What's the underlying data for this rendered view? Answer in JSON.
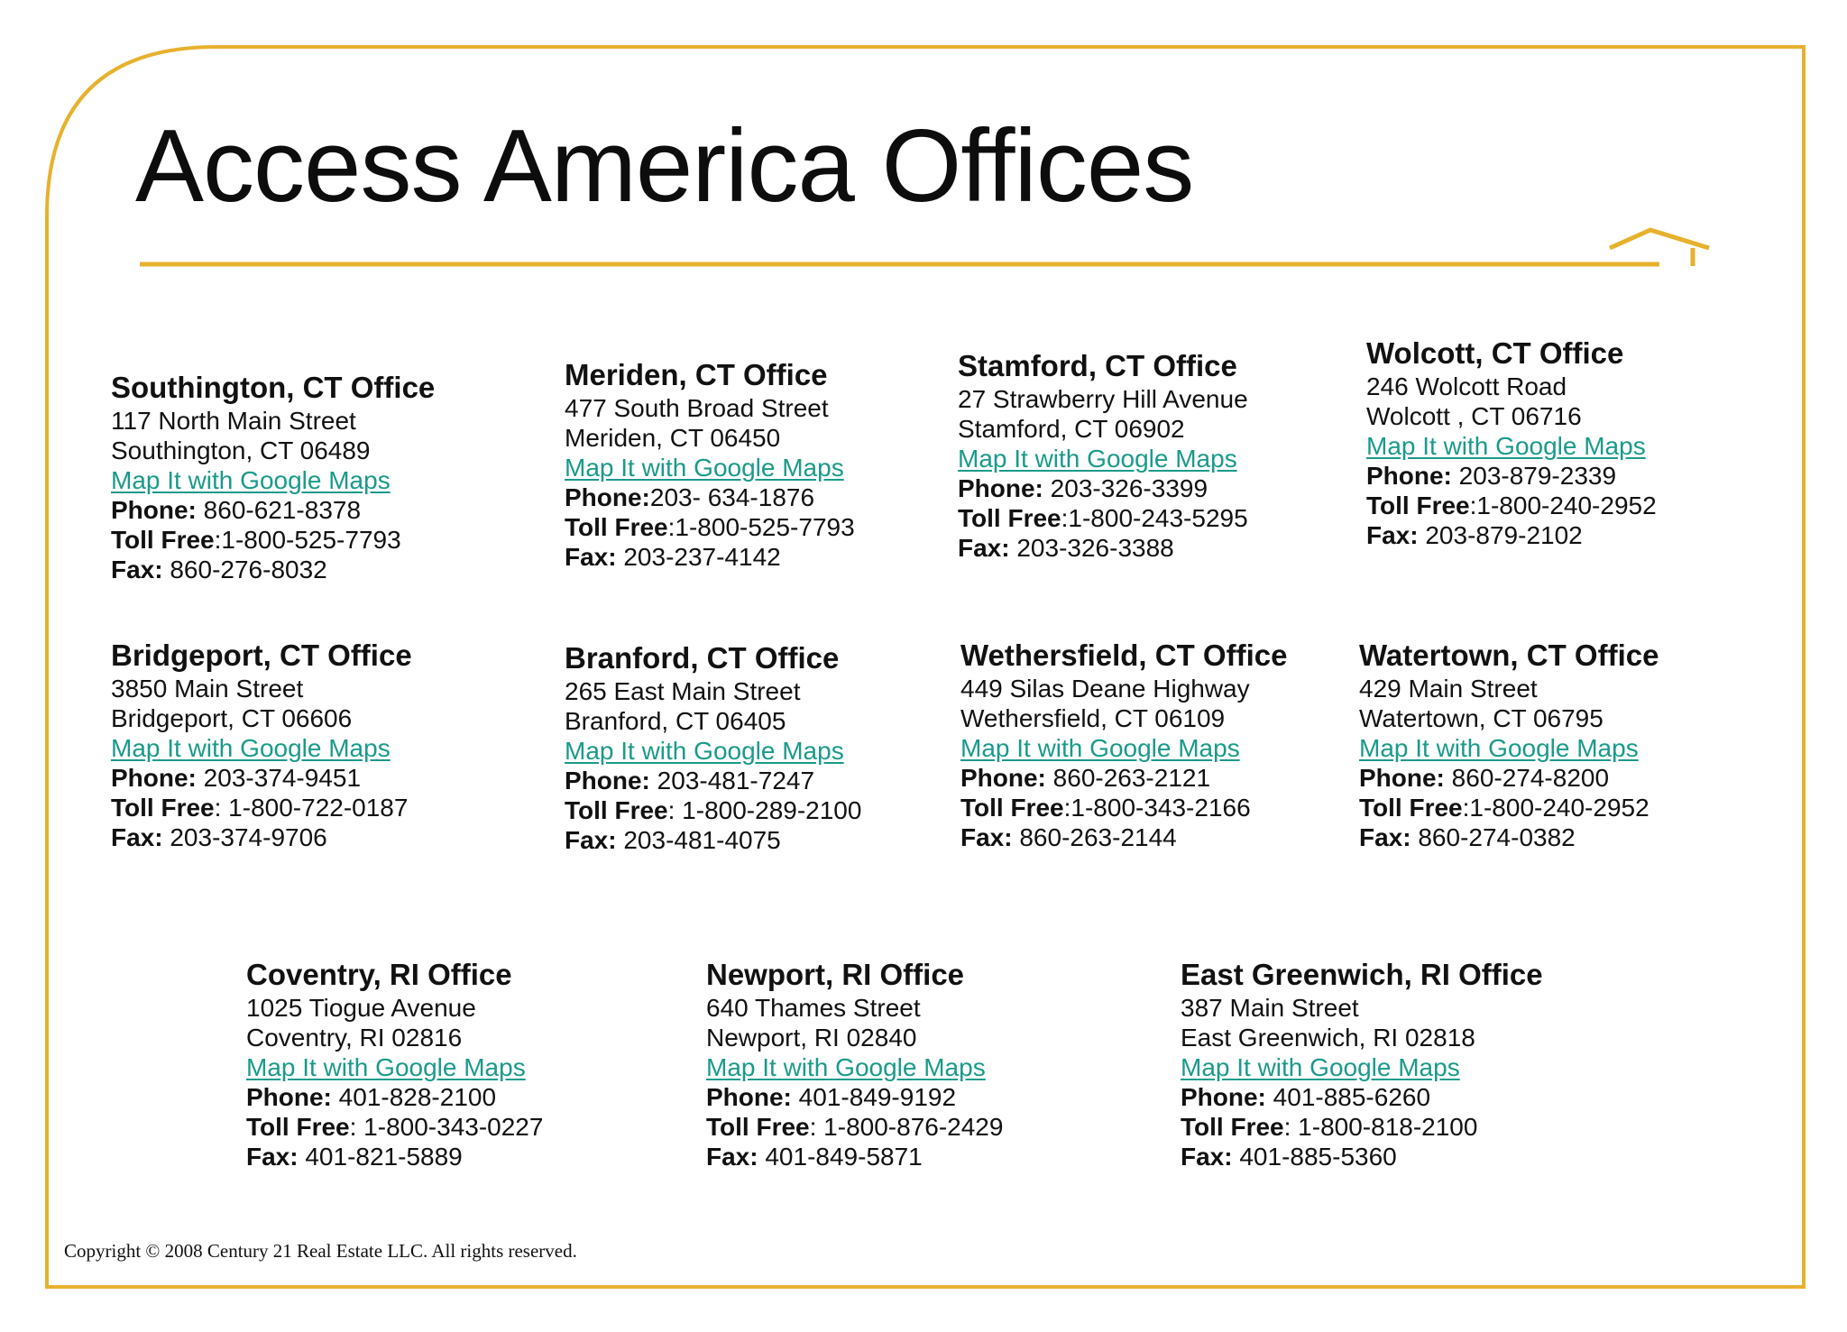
{
  "title": "Access America Offices",
  "accent_color": "#e7b12e",
  "labels": {
    "phone": "Phone:",
    "toll_free": "Toll Free",
    "fax": "Fax:"
  },
  "offices": [
    {
      "name": "Southington, CT Office",
      "street": "117 North Main Street",
      "city": "Southington, CT  06489",
      "map": "Map It with Google Maps",
      "phone": " 860-621-8378",
      "toll_free": ":1-800-525-7793",
      "fax": " 860-276-8032"
    },
    {
      "name": "Meriden, CT Office",
      "street": "477 South Broad Street",
      "city": "Meriden, CT  06450",
      "map": "Map It with Google Maps ",
      "phone": "203- 634-1876",
      "toll_free": ":1-800-525-7793",
      "fax": " 203-237-4142"
    },
    {
      "name": "Stamford, CT Office",
      "street": "27 Strawberry Hill Avenue",
      "city": "Stamford, CT  06902",
      "map": "Map It with Google Maps",
      "phone": " 203-326-3399",
      "toll_free": ":1-800-243-5295",
      "fax": " 203-326-3388"
    },
    {
      "name": "Wolcott, CT Office",
      "street": "246 Wolcott Road",
      "city": "Wolcott , CT  06716",
      "map": "Map It with Google Maps",
      "phone": " 203-879-2339",
      "toll_free": ":1-800-240-2952",
      "fax": " 203-879-2102"
    },
    {
      "name": "Bridgeport, CT Office",
      "street": "3850 Main Street",
      "city": "Bridgeport, CT  06606",
      "map": "Map It with Google Maps",
      "phone": " 203-374-9451",
      "toll_free": ": 1-800-722-0187",
      "fax": " 203-374-9706"
    },
    {
      "name": "Branford, CT Office",
      "street": "265 East Main Street",
      "city": "Branford, CT  06405",
      "map": "Map It with Google Maps",
      "phone": " 203-481-7247",
      "toll_free": ": 1-800-289-2100",
      "fax": " 203-481-4075"
    },
    {
      "name": "Wethersfield, CT Office",
      "street": "449 Silas Deane Highway",
      "city": "Wethersfield, CT  06109",
      "map": "Map It with Google Maps",
      "phone": " 860-263-2121",
      "toll_free": ":1-800-343-2166",
      "fax": " 860-263-2144"
    },
    {
      "name": "Watertown, CT Office",
      "street": "429 Main Street",
      "city": "Watertown, CT  06795",
      "map": "Map It with Google Maps",
      "phone": " 860-274-8200",
      "toll_free": ":1-800-240-2952",
      "fax": " 860-274-0382"
    },
    {
      "name": "Coventry, RI Office",
      "street": "1025 Tiogue Avenue",
      "city": "Coventry, RI  02816",
      "map": "Map It with Google Maps ",
      "phone": " 401-828-2100",
      "toll_free": ": 1-800-343-0227",
      "fax": " 401-821-5889"
    },
    {
      "name": "Newport, RI Office",
      "street": "640 Thames Street",
      "city": "Newport, RI  02840",
      "map": "Map It with Google Maps ",
      "phone": " 401-849-9192",
      "toll_free": ": 1-800-876-2429",
      "fax": " 401-849-5871"
    },
    {
      "name": "East Greenwich, RI Office",
      "street": "387 Main Street",
      "city": "East Greenwich, RI  02818",
      "map": "Map It with Google Maps",
      "phone": " 401-885-6260",
      "toll_free": ": 1-800-818-2100",
      "fax": " 401-885-5360"
    }
  ],
  "copyright": "Copyright © 2008 Century 21 Real Estate LLC. All rights reserved."
}
